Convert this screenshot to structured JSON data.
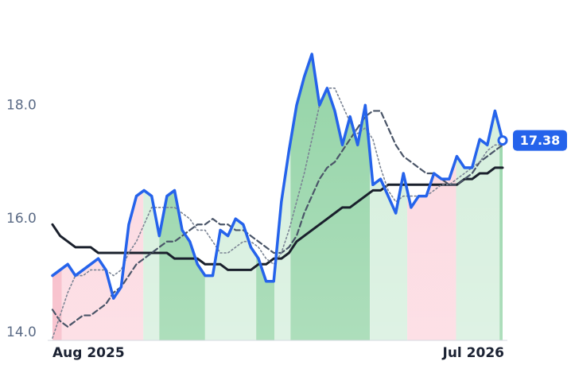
{
  "chart_data": {
    "type": "line",
    "categories": [
      "Aug 2025",
      null,
      null,
      null,
      null,
      null,
      null,
      null,
      null,
      null,
      null,
      null,
      null,
      null,
      null,
      null,
      null,
      null,
      null,
      null,
      null,
      null,
      null,
      null,
      null,
      null,
      null,
      null,
      null,
      null,
      null,
      null,
      null,
      null,
      null,
      null,
      null,
      null,
      null,
      null,
      null,
      null,
      null,
      null,
      null,
      null,
      null,
      null,
      null,
      null,
      null,
      null,
      null,
      null,
      null,
      null,
      null,
      null,
      null,
      "Jul 2026"
    ],
    "series": [
      {
        "color": "#2563eb",
        "values": [
          15.0,
          15.1,
          15.2,
          15.0,
          15.1,
          15.2,
          15.3,
          15.1,
          14.6,
          14.8,
          15.9,
          16.4,
          16.5,
          16.4,
          15.7,
          16.4,
          16.5,
          15.8,
          15.6,
          15.2,
          15.0,
          15.0,
          15.8,
          15.7,
          16.0,
          15.9,
          15.5,
          15.3,
          14.9,
          14.9,
          16.3,
          17.2,
          18.0,
          18.5,
          18.9,
          18.0,
          18.3,
          17.9,
          17.3,
          17.8,
          17.3,
          18.0,
          16.6,
          16.7,
          16.4,
          16.1,
          16.8,
          16.2,
          16.4,
          16.4,
          16.8,
          16.7,
          16.7,
          17.1,
          16.9,
          16.9,
          17.4,
          17.3,
          17.9,
          17.38
        ]
      },
      {
        "color": "#7b8494",
        "values": [
          13.9,
          14.3,
          14.7,
          15.0,
          15.0,
          15.1,
          15.1,
          15.1,
          15.0,
          15.1,
          15.4,
          15.6,
          15.9,
          16.2,
          16.2,
          16.2,
          16.2,
          16.1,
          16.0,
          15.8,
          15.8,
          15.6,
          15.4,
          15.4,
          15.5,
          15.6,
          15.6,
          15.5,
          15.3,
          15.2,
          15.4,
          15.8,
          16.3,
          16.8,
          17.4,
          18.0,
          18.3,
          18.3,
          18.0,
          17.7,
          17.5,
          17.6,
          17.4,
          16.9,
          16.5,
          16.3,
          16.4,
          16.4,
          16.4,
          16.4,
          16.5,
          16.6,
          16.6,
          16.7,
          16.8,
          16.9,
          17.0,
          17.2,
          17.3,
          17.3
        ]
      },
      {
        "color": "#4a5568",
        "values": [
          14.4,
          14.2,
          14.1,
          14.2,
          14.3,
          14.3,
          14.4,
          14.5,
          14.7,
          14.8,
          15.0,
          15.2,
          15.3,
          15.4,
          15.5,
          15.6,
          15.6,
          15.7,
          15.8,
          15.9,
          15.9,
          16.0,
          15.9,
          15.9,
          15.8,
          15.8,
          15.7,
          15.6,
          15.5,
          15.4,
          15.4,
          15.5,
          15.7,
          16.1,
          16.4,
          16.7,
          16.9,
          17.0,
          17.2,
          17.4,
          17.6,
          17.8,
          17.9,
          17.9,
          17.6,
          17.3,
          17.1,
          17.0,
          16.9,
          16.8,
          16.8,
          16.7,
          16.6,
          16.6,
          16.7,
          16.8,
          17.0,
          17.1,
          17.2,
          17.3
        ]
      },
      {
        "color": "#1a202c",
        "values": [
          15.9,
          15.7,
          15.6,
          15.5,
          15.5,
          15.5,
          15.4,
          15.4,
          15.4,
          15.4,
          15.4,
          15.4,
          15.4,
          15.4,
          15.4,
          15.4,
          15.3,
          15.3,
          15.3,
          15.3,
          15.2,
          15.2,
          15.2,
          15.1,
          15.1,
          15.1,
          15.1,
          15.2,
          15.2,
          15.3,
          15.3,
          15.4,
          15.6,
          15.7,
          15.8,
          15.9,
          16.0,
          16.1,
          16.2,
          16.2,
          16.3,
          16.4,
          16.5,
          16.5,
          16.6,
          16.6,
          16.6,
          16.6,
          16.6,
          16.6,
          16.6,
          16.6,
          16.6,
          16.6,
          16.7,
          16.7,
          16.8,
          16.8,
          16.9,
          16.9
        ]
      }
    ],
    "bands": [
      {
        "from": 0,
        "to": 1.2,
        "color": "#f6b3c1"
      },
      {
        "from": 1.2,
        "to": 11.9,
        "color": "#fcd6de"
      },
      {
        "from": 11.9,
        "to": 14,
        "color": "#d3eedb"
      },
      {
        "from": 14,
        "to": 20,
        "color": "#92d3a5"
      },
      {
        "from": 20,
        "to": 26.7,
        "color": "#d3eedb"
      },
      {
        "from": 26.7,
        "to": 29.1,
        "color": "#92d3a5"
      },
      {
        "from": 29.1,
        "to": 31.2,
        "color": "#d3eedb"
      },
      {
        "from": 31.2,
        "to": 41.6,
        "color": "#92d3a5"
      },
      {
        "from": 41.6,
        "to": 46.5,
        "color": "#d3eedb"
      },
      {
        "from": 46.5,
        "to": 52.9,
        "color": "#fcd6de"
      },
      {
        "from": 52.9,
        "to": 58.6,
        "color": "#d3eedb"
      },
      {
        "from": 58.6,
        "to": 59,
        "color": "#92d3a5"
      }
    ],
    "ylim": [
      13.86,
      19.6
    ],
    "yticks": [
      {
        "value": 14,
        "label": "14.0"
      },
      {
        "value": 16,
        "label": "16.0"
      },
      {
        "value": 18,
        "label": "18.0"
      }
    ],
    "grid": false
  }
}
